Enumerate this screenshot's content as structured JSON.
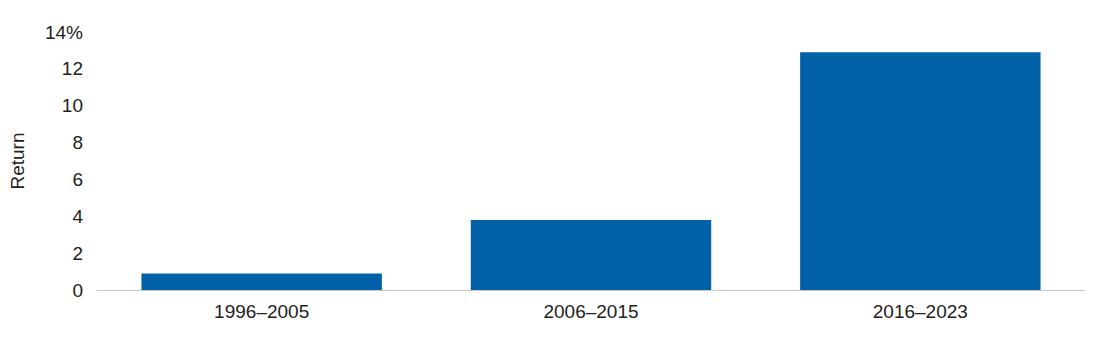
{
  "chart_data": {
    "type": "bar",
    "y_label": "Return",
    "categories": [
      "1996–2005",
      "2006–2015",
      "2016–2023"
    ],
    "values": [
      0.9,
      3.8,
      12.9
    ],
    "color": "#0061a8",
    "ylim": [
      0,
      14
    ],
    "yticks": [
      0,
      2,
      4,
      6,
      8,
      10,
      12,
      {
        "value": 14,
        "label": "14%"
      }
    ],
    "grid": false
  }
}
